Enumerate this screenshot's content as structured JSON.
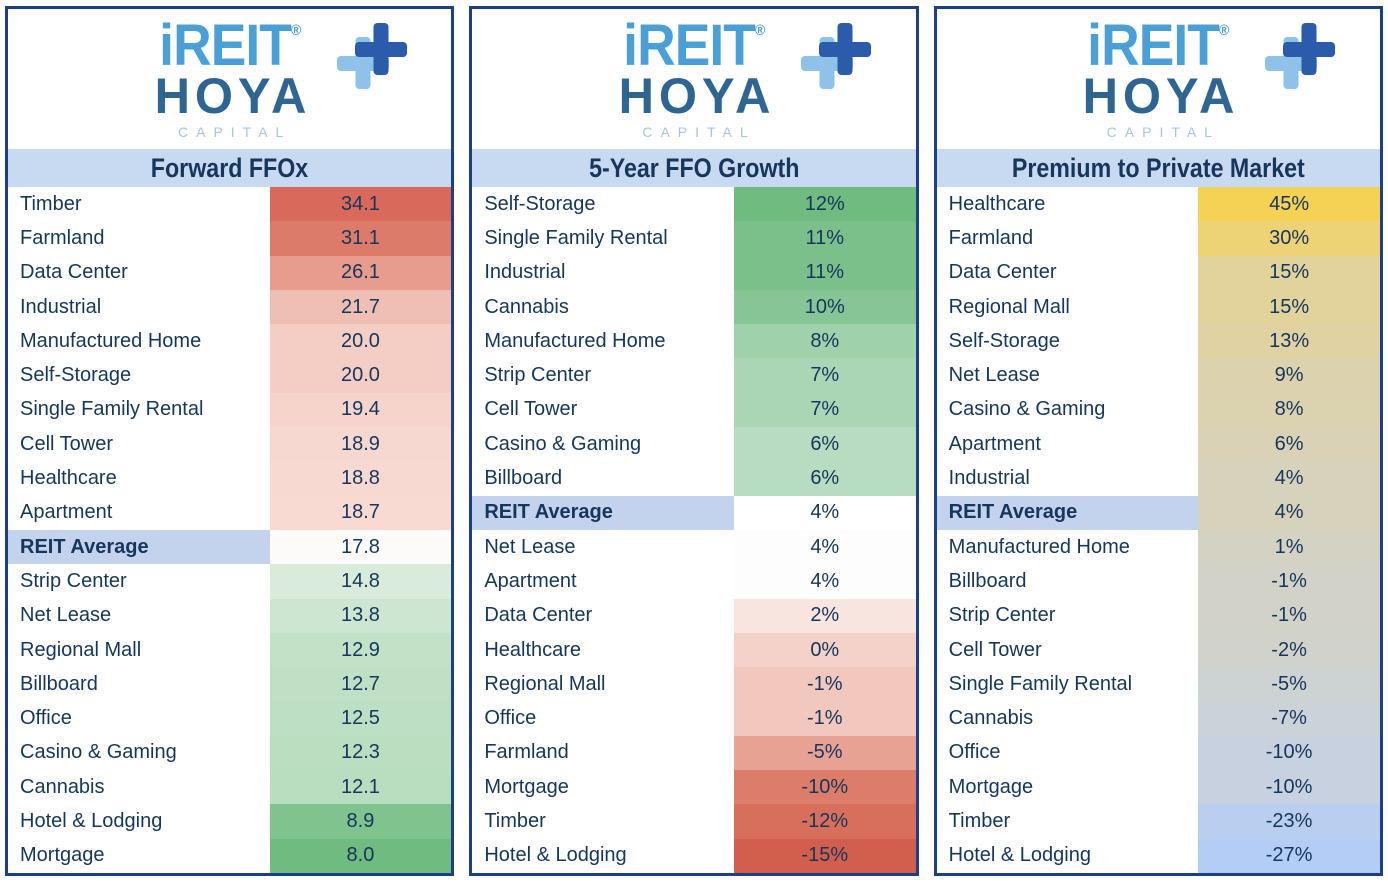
{
  "logo": {
    "brand_top": "iREIT",
    "registered": "®",
    "brand_bottom": "HOYA",
    "brand_sub": "CAPITAL",
    "icon": "plus-cross-icon"
  },
  "colors": {
    "panel_border": "#1d3f87",
    "title_bar_bg": "#c8daf2",
    "title_text": "#16365c",
    "row_text": "#16365c",
    "highlight_row_bg": "#c3d3ee",
    "logo_ireit": "#4aa0d6",
    "logo_hoya": "#2f6593",
    "logo_capital": "#a6c5e6",
    "logo_cross_dark": "#2b5cab",
    "logo_cross_light": "#8ec2e8"
  },
  "chart_data": [
    {
      "type": "heatmap",
      "title": "Forward FFOx",
      "scale": "high=red, mid(REIT Average)=white, low=green",
      "rows": [
        {
          "sector": "Timber",
          "value": 34.1,
          "display": "34.1",
          "color": "#d9695a",
          "highlight": false
        },
        {
          "sector": "Farmland",
          "value": 31.1,
          "display": "31.1",
          "color": "#dd7b6b",
          "highlight": false
        },
        {
          "sector": "Data Center",
          "value": 26.1,
          "display": "26.1",
          "color": "#e79c8d",
          "highlight": false
        },
        {
          "sector": "Industrial",
          "value": 21.7,
          "display": "21.7",
          "color": "#f0bfb4",
          "highlight": false
        },
        {
          "sector": "Manufactured Home",
          "value": 20.0,
          "display": "20.0",
          "color": "#f4cdc4",
          "highlight": false
        },
        {
          "sector": "Self-Storage",
          "value": 20.0,
          "display": "20.0",
          "color": "#f4cdc4",
          "highlight": false
        },
        {
          "sector": "Single Family Rental",
          "value": 19.4,
          "display": "19.4",
          "color": "#f6d3cb",
          "highlight": false
        },
        {
          "sector": "Cell Tower",
          "value": 18.9,
          "display": "18.9",
          "color": "#f7d8d0",
          "highlight": false
        },
        {
          "sector": "Healthcare",
          "value": 18.8,
          "display": "18.8",
          "color": "#f7d9d1",
          "highlight": false
        },
        {
          "sector": "Apartment",
          "value": 18.7,
          "display": "18.7",
          "color": "#f8dad3",
          "highlight": false
        },
        {
          "sector": "REIT Average",
          "value": 17.8,
          "display": "17.8",
          "color": "#fdfbfa",
          "highlight": true
        },
        {
          "sector": "Strip Center",
          "value": 14.8,
          "display": "14.8",
          "color": "#d9ecdc",
          "highlight": false
        },
        {
          "sector": "Net Lease",
          "value": 13.8,
          "display": "13.8",
          "color": "#cde6d1",
          "highlight": false
        },
        {
          "sector": "Regional Mall",
          "value": 12.9,
          "display": "12.9",
          "color": "#c2e1c7",
          "highlight": false
        },
        {
          "sector": "Billboard",
          "value": 12.7,
          "display": "12.7",
          "color": "#bfe0c5",
          "highlight": false
        },
        {
          "sector": "Office",
          "value": 12.5,
          "display": "12.5",
          "color": "#bddfc3",
          "highlight": false
        },
        {
          "sector": "Casino & Gaming",
          "value": 12.3,
          "display": "12.3",
          "color": "#bbdec1",
          "highlight": false
        },
        {
          "sector": "Cannabis",
          "value": 12.1,
          "display": "12.1",
          "color": "#b8ddbf",
          "highlight": false
        },
        {
          "sector": "Hotel & Lodging",
          "value": 8.9,
          "display": "8.9",
          "color": "#81c38f",
          "highlight": false
        },
        {
          "sector": "Mortgage",
          "value": 8.0,
          "display": "8.0",
          "color": "#6fbb80",
          "highlight": false
        }
      ]
    },
    {
      "type": "heatmap",
      "title": "5-Year FFO Growth",
      "scale": "high=green, mid(REIT Average)=white, low=red",
      "rows": [
        {
          "sector": "Self-Storage",
          "value": 12,
          "display": "12%",
          "color": "#6fbb80",
          "highlight": false
        },
        {
          "sector": "Single Family Rental",
          "value": 11,
          "display": "11%",
          "color": "#7bc08b",
          "highlight": false
        },
        {
          "sector": "Industrial",
          "value": 11,
          "display": "11%",
          "color": "#7bc08b",
          "highlight": false
        },
        {
          "sector": "Cannabis",
          "value": 10,
          "display": "10%",
          "color": "#87c596",
          "highlight": false
        },
        {
          "sector": "Manufactured Home",
          "value": 8,
          "display": "8%",
          "color": "#9fd1ab",
          "highlight": false
        },
        {
          "sector": "Strip Center",
          "value": 7,
          "display": "7%",
          "color": "#abd6b6",
          "highlight": false
        },
        {
          "sector": "Cell Tower",
          "value": 7,
          "display": "7%",
          "color": "#abd6b6",
          "highlight": false
        },
        {
          "sector": "Casino & Gaming",
          "value": 6,
          "display": "6%",
          "color": "#b7dcc1",
          "highlight": false
        },
        {
          "sector": "Billboard",
          "value": 6,
          "display": "6%",
          "color": "#b7dcc1",
          "highlight": false
        },
        {
          "sector": "REIT Average",
          "value": 4,
          "display": "4%",
          "color": "#ffffff",
          "highlight": true
        },
        {
          "sector": "Net Lease",
          "value": 4,
          "display": "4%",
          "color": "#fefdfd",
          "highlight": false
        },
        {
          "sector": "Apartment",
          "value": 4,
          "display": "4%",
          "color": "#fefdfd",
          "highlight": false
        },
        {
          "sector": "Data Center",
          "value": 2,
          "display": "2%",
          "color": "#f9e5e0",
          "highlight": false
        },
        {
          "sector": "Healthcare",
          "value": 0,
          "display": "0%",
          "color": "#f4d1c9",
          "highlight": false
        },
        {
          "sector": "Regional Mall",
          "value": -1,
          "display": "-1%",
          "color": "#f1c7be",
          "highlight": false
        },
        {
          "sector": "Office",
          "value": -1,
          "display": "-1%",
          "color": "#f1c7be",
          "highlight": false
        },
        {
          "sector": "Farmland",
          "value": -5,
          "display": "-5%",
          "color": "#e7a294",
          "highlight": false
        },
        {
          "sector": "Mortgage",
          "value": -10,
          "display": "-10%",
          "color": "#dc7c6a",
          "highlight": false
        },
        {
          "sector": "Timber",
          "value": -12,
          "display": "-12%",
          "color": "#d86f5d",
          "highlight": false
        },
        {
          "sector": "Hotel & Lodging",
          "value": -15,
          "display": "-15%",
          "color": "#d25f4d",
          "highlight": false
        }
      ]
    },
    {
      "type": "heatmap",
      "title": "Premium to Private Market",
      "scale": "high=yellow, mid=tan, low=blue",
      "rows": [
        {
          "sector": "Healthcare",
          "value": 45,
          "display": "45%",
          "color": "#f5d254",
          "highlight": false
        },
        {
          "sector": "Farmland",
          "value": 30,
          "display": "30%",
          "color": "#edd276",
          "highlight": false
        },
        {
          "sector": "Data Center",
          "value": 15,
          "display": "15%",
          "color": "#e2d29c",
          "highlight": false
        },
        {
          "sector": "Regional Mall",
          "value": 15,
          "display": "15%",
          "color": "#e2d29c",
          "highlight": false
        },
        {
          "sector": "Self-Storage",
          "value": 13,
          "display": "13%",
          "color": "#e0d2a2",
          "highlight": false
        },
        {
          "sector": "Net Lease",
          "value": 9,
          "display": "9%",
          "color": "#dcd2ad",
          "highlight": false
        },
        {
          "sector": "Casino & Gaming",
          "value": 8,
          "display": "8%",
          "color": "#dbd2b0",
          "highlight": false
        },
        {
          "sector": "Apartment",
          "value": 6,
          "display": "6%",
          "color": "#d9d2b6",
          "highlight": false
        },
        {
          "sector": "Industrial",
          "value": 4,
          "display": "4%",
          "color": "#d7d2bb",
          "highlight": false
        },
        {
          "sector": "REIT Average",
          "value": 4,
          "display": "4%",
          "color": "#d7d2bb",
          "highlight": true
        },
        {
          "sector": "Manufactured Home",
          "value": 1,
          "display": "1%",
          "color": "#d4d2c3",
          "highlight": false
        },
        {
          "sector": "Billboard",
          "value": -1,
          "display": "-1%",
          "color": "#d2d2c8",
          "highlight": false
        },
        {
          "sector": "Strip Center",
          "value": -1,
          "display": "-1%",
          "color": "#d2d2c8",
          "highlight": false
        },
        {
          "sector": "Cell Tower",
          "value": -2,
          "display": "-2%",
          "color": "#d1d2cb",
          "highlight": false
        },
        {
          "sector": "Single Family Rental",
          "value": -5,
          "display": "-5%",
          "color": "#cdd2d3",
          "highlight": false
        },
        {
          "sector": "Cannabis",
          "value": -7,
          "display": "-7%",
          "color": "#cbd2d8",
          "highlight": false
        },
        {
          "sector": "Office",
          "value": -10,
          "display": "-10%",
          "color": "#c7d1e0",
          "highlight": false
        },
        {
          "sector": "Mortgage",
          "value": -10,
          "display": "-10%",
          "color": "#c7d1e0",
          "highlight": false
        },
        {
          "sector": "Timber",
          "value": -23,
          "display": "-23%",
          "color": "#bacfef",
          "highlight": false
        },
        {
          "sector": "Hotel & Lodging",
          "value": -27,
          "display": "-27%",
          "color": "#b4cdf6",
          "highlight": false
        }
      ]
    }
  ]
}
